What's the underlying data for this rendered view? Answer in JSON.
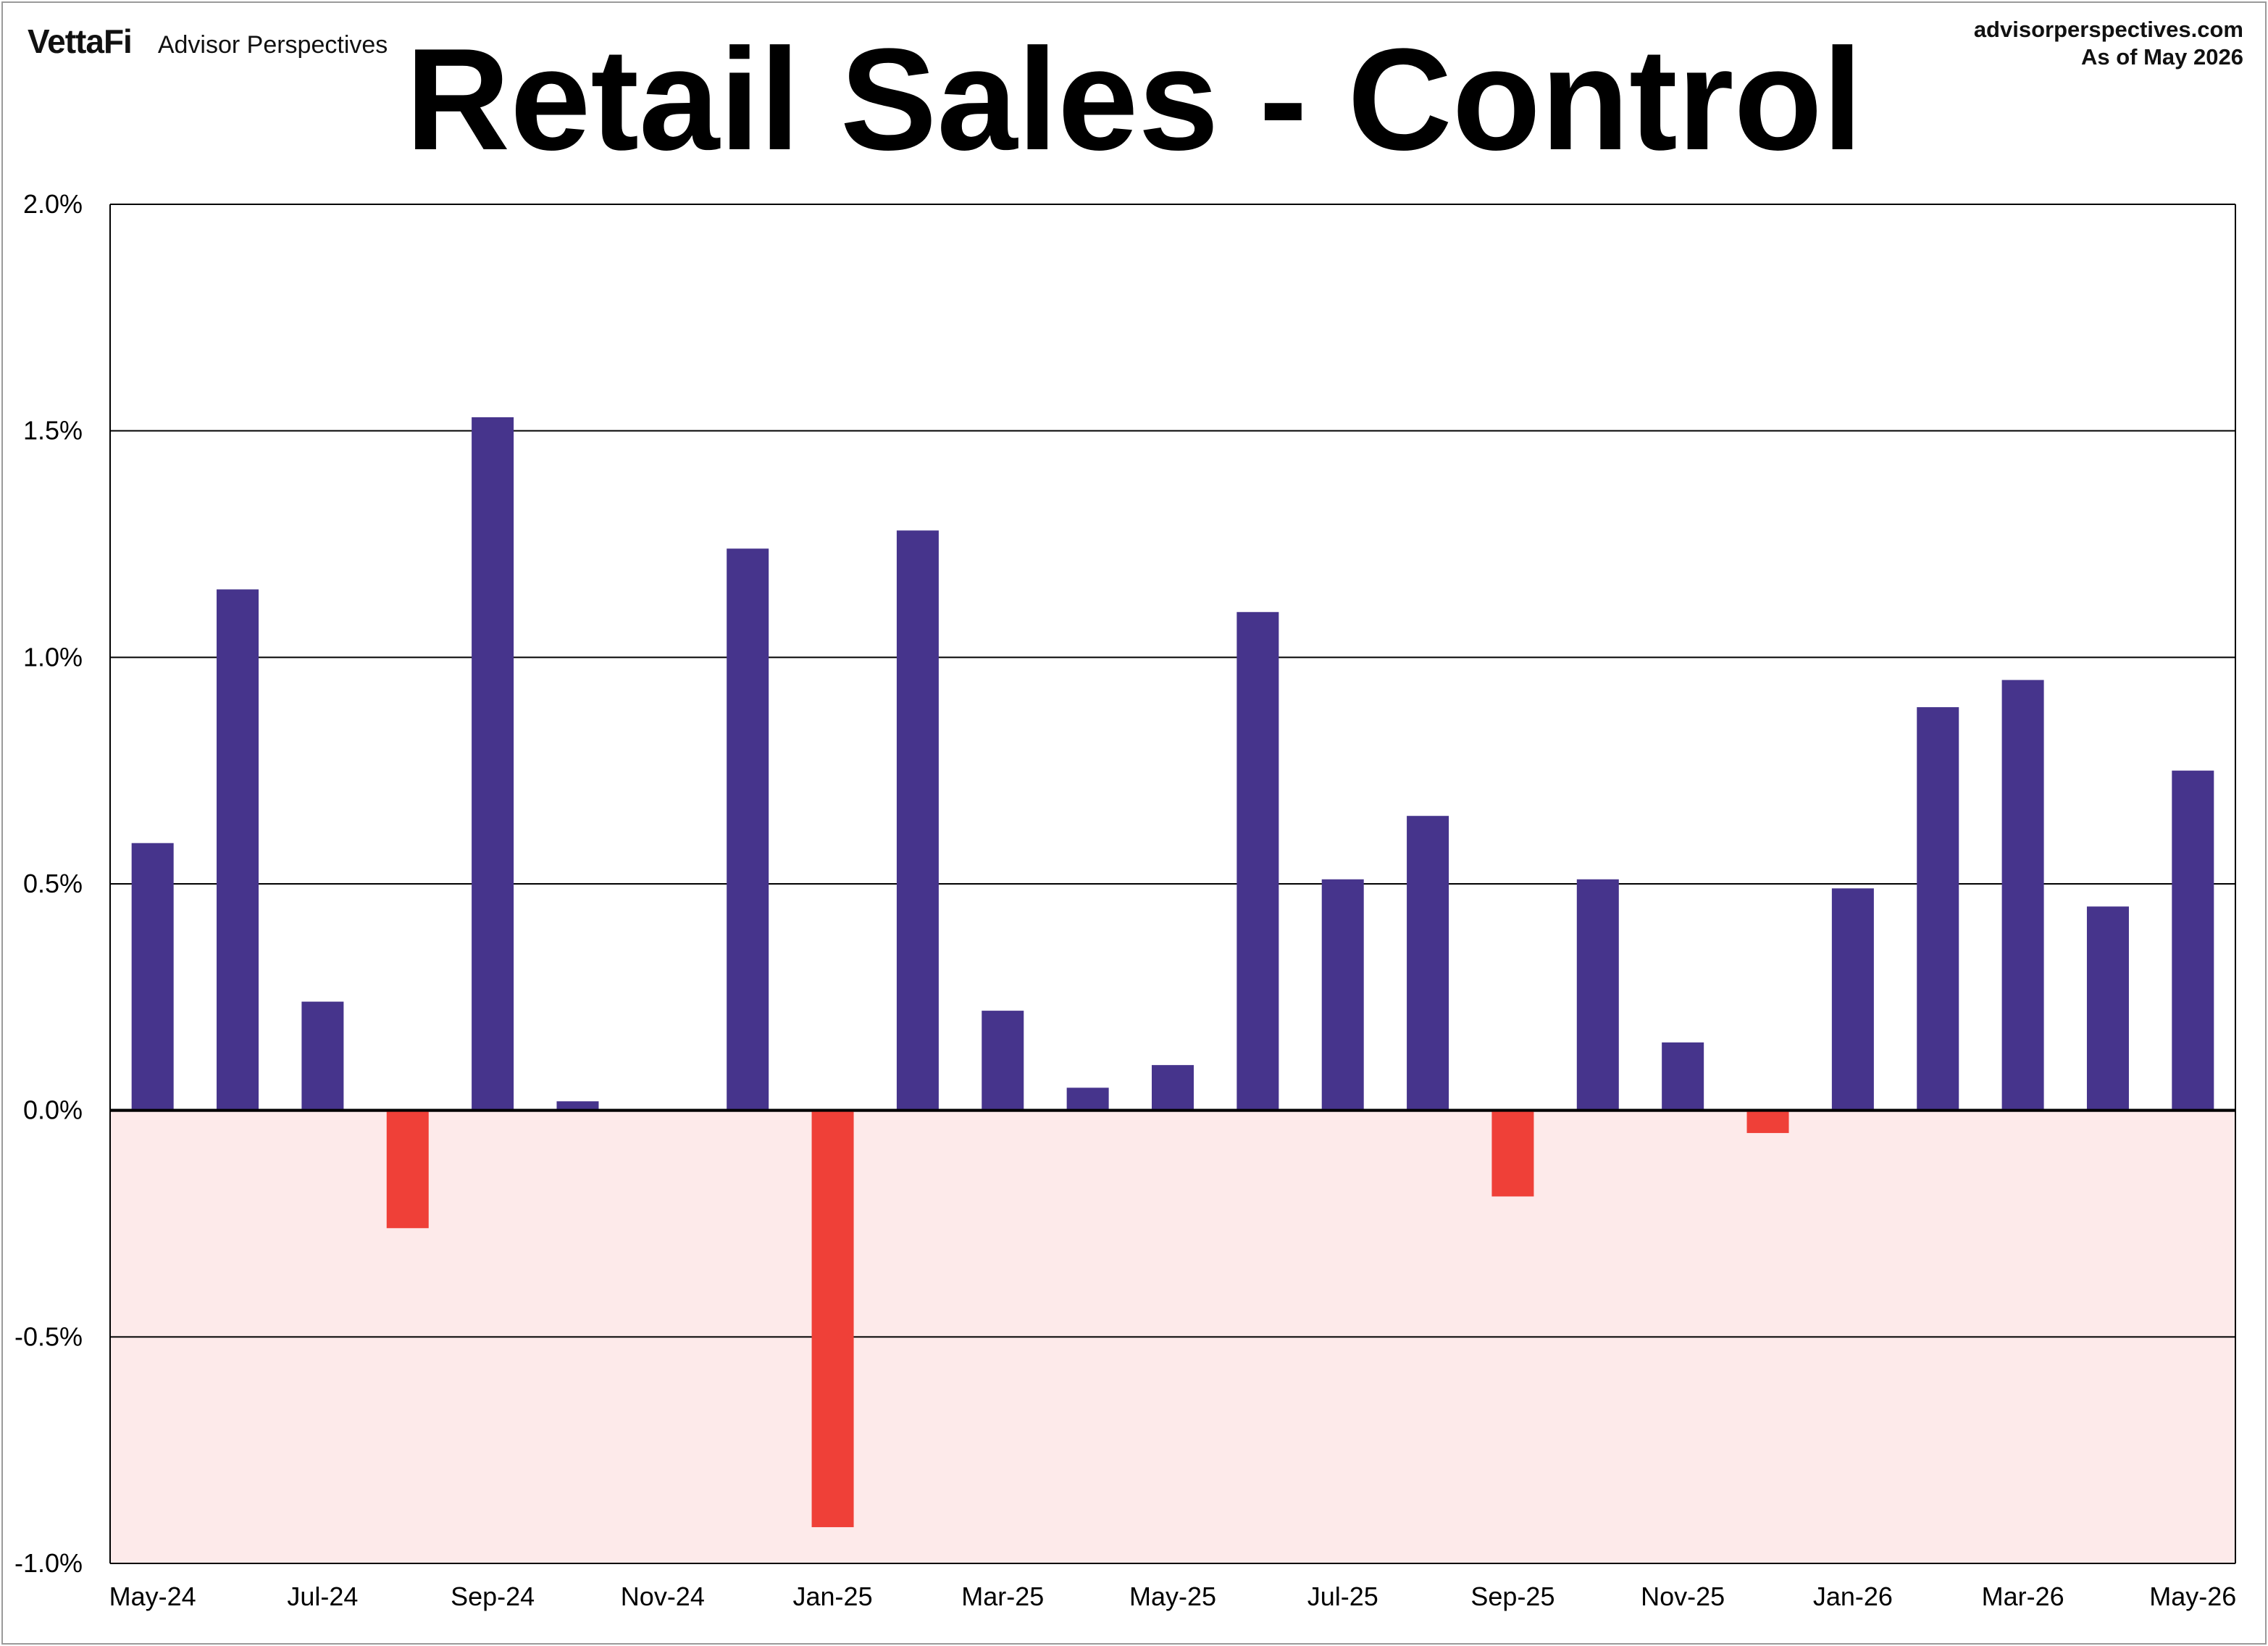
{
  "header": {
    "brand": "VettaFi",
    "brand_sub": "Advisor Perspectives",
    "site": "advisorperspectives.com",
    "as_of": "As of May 2026"
  },
  "chart_data": {
    "type": "bar",
    "title": "Retail Sales - Control",
    "xlabel": "",
    "ylabel": "",
    "ylim": [
      -1.0,
      2.0
    ],
    "y_ticks": [
      2.0,
      1.5,
      1.0,
      0.5,
      0.0,
      -0.5,
      -1.0
    ],
    "y_tick_labels": [
      "2.0%",
      "1.5%",
      "1.0%",
      "0.5%",
      "0.0%",
      "-0.5%",
      "-1.0%"
    ],
    "grid": true,
    "negative_region_shaded": true,
    "colors": {
      "positive": "#46348c",
      "negative": "#ef4038",
      "negative_shade": "#fdeaea",
      "grid": "#000000"
    },
    "categories": [
      "May-24",
      "Jun-24",
      "Jul-24",
      "Aug-24",
      "Sep-24",
      "Oct-24",
      "Nov-24",
      "Dec-24",
      "Jan-25",
      "Feb-25",
      "Mar-25",
      "Apr-25",
      "May-25",
      "Jun-25",
      "Jul-25",
      "Aug-25",
      "Sep-25",
      "Oct-25",
      "Nov-25",
      "Dec-25",
      "Jan-26",
      "Feb-26",
      "Mar-26",
      "Apr-26",
      "May-26"
    ],
    "x_tick_labels": [
      "May-24",
      "Jul-24",
      "Sep-24",
      "Nov-24",
      "Jan-25",
      "Mar-25",
      "May-25",
      "Jul-25",
      "Sep-25",
      "Nov-25",
      "Jan-26",
      "Mar-26",
      "May-26"
    ],
    "values": [
      0.59,
      1.15,
      0.24,
      -0.26,
      1.53,
      0.02,
      0.0,
      1.24,
      -0.92,
      1.28,
      0.22,
      0.05,
      0.1,
      1.1,
      0.51,
      0.65,
      -0.19,
      0.51,
      0.15,
      -0.05,
      0.49,
      0.89,
      0.95,
      0.45,
      0.75
    ]
  }
}
